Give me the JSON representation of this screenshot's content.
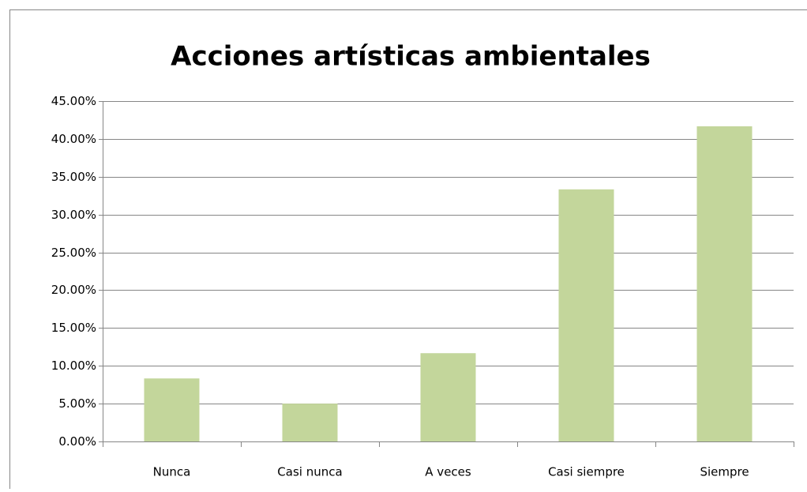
{
  "chart_data": {
    "type": "bar",
    "title": "Acciones artísticas ambientales",
    "categories": [
      "Nunca",
      "Casi nunca",
      "A veces",
      "Casi siempre",
      "Siempre"
    ],
    "values": [
      8.33,
      5,
      11.67,
      33.33,
      41.67
    ],
    "color": "#c3d69b",
    "ylim": [
      0,
      45
    ],
    "yticks": [
      {
        "value": 0,
        "label": "0.00%"
      },
      {
        "value": 5,
        "label": "5.00%"
      },
      {
        "value": 10,
        "label": "10.00%"
      },
      {
        "value": 15,
        "label": "15.00%"
      },
      {
        "value": 20,
        "label": "20.00%"
      },
      {
        "value": 25,
        "label": "25.00%"
      },
      {
        "value": 30,
        "label": "30.00%"
      },
      {
        "value": 35,
        "label": "35.00%"
      },
      {
        "value": 40,
        "label": "40.00%"
      },
      {
        "value": 45,
        "label": "45.00%"
      }
    ],
    "grid": true
  }
}
